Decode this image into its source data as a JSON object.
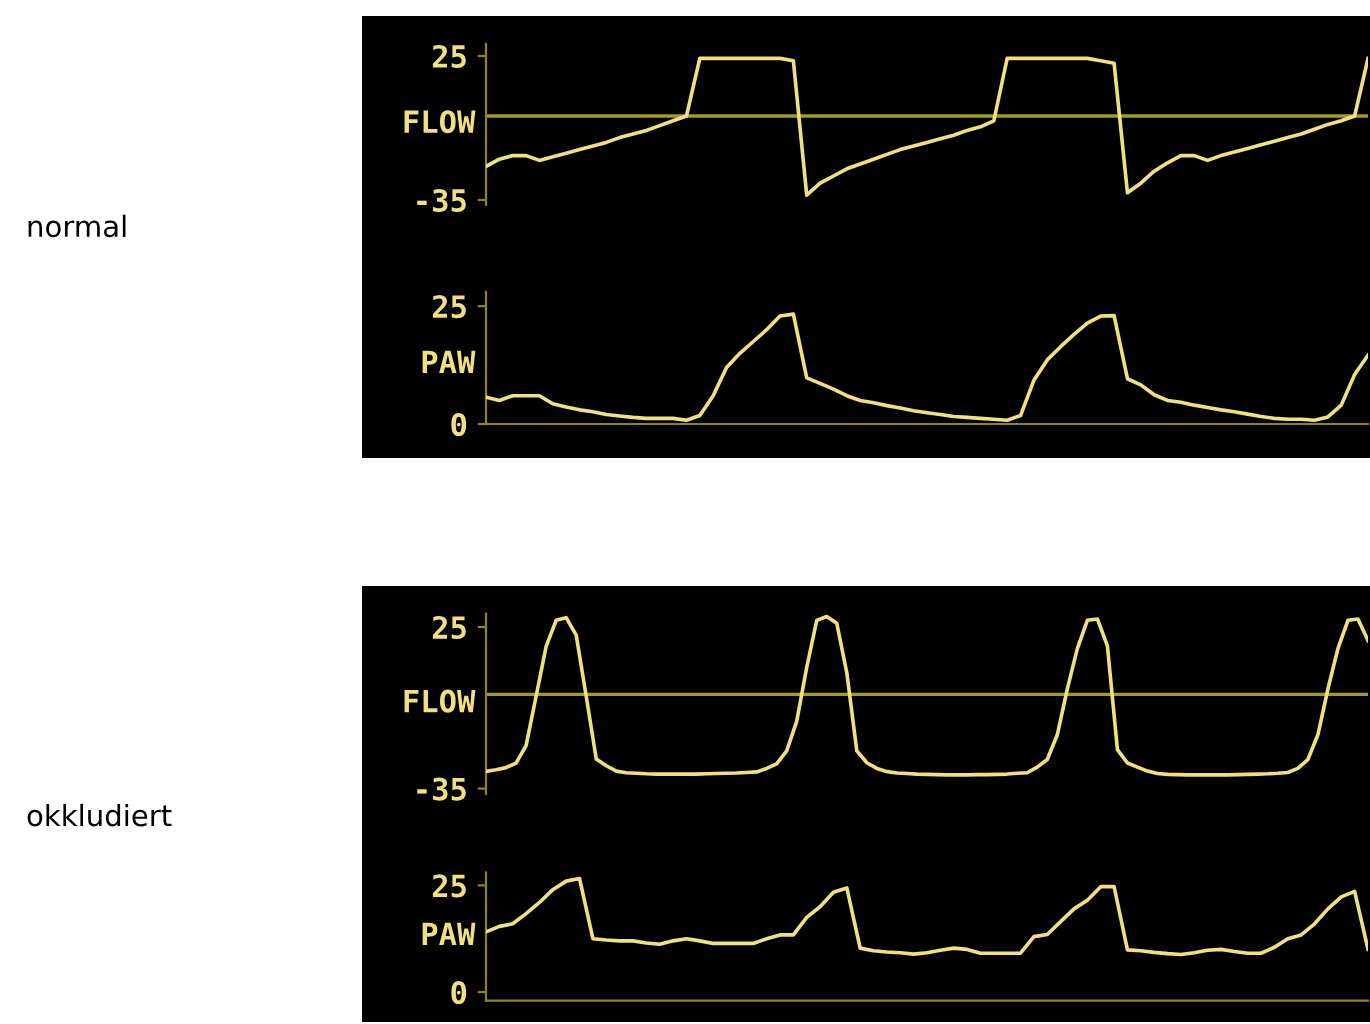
{
  "chart_data": [
    {
      "type": "line",
      "ylabel": "FLOW",
      "annotations": [
        "normal"
      ],
      "ylim": [
        -37,
        30
      ],
      "yticks": [
        -35,
        25
      ],
      "tick_labels": "y",
      "grid": false,
      "legend": false,
      "ref_lines": [
        {
          "axis": "y",
          "value": 0,
          "color": "#a09a30"
        }
      ],
      "categories": [
        null,
        null,
        null,
        null,
        null,
        null,
        null,
        null,
        null,
        null,
        null,
        null,
        null,
        null,
        null,
        null,
        null,
        null,
        null,
        null,
        null,
        null,
        null,
        null,
        null,
        null,
        null,
        null,
        null,
        null,
        null,
        null,
        null,
        null,
        null,
        null,
        null,
        null,
        null,
        null,
        null,
        null,
        null,
        null,
        null,
        null,
        null,
        null,
        null,
        null,
        null,
        null,
        null,
        null,
        null,
        null,
        null,
        null,
        null,
        null,
        null,
        null,
        null,
        null,
        null,
        null,
        null
      ],
      "series": [
        {
          "color": "#f0e080",
          "values": [
            -21,
            -18,
            -16.5,
            -16.5,
            -18.5,
            -17,
            -15.5,
            -14,
            -12.5,
            -11,
            -9,
            -7.5,
            -6,
            -4,
            -2,
            0,
            24,
            24,
            24,
            24,
            24,
            24,
            24,
            23,
            -33,
            -28,
            -25,
            -22,
            -20,
            -18,
            -16,
            -14,
            -12.5,
            -11,
            -9.5,
            -8,
            -6,
            -4.5,
            -2,
            24,
            24,
            24,
            24,
            24,
            24,
            24,
            23,
            22,
            -32,
            -28,
            -23,
            -19.5,
            -16.5,
            -16.5,
            -18.5,
            -16.5,
            -15,
            -13.5,
            -12,
            -10.5,
            -9,
            -7.5,
            -5.5,
            -3.5,
            -2,
            0,
            24
          ]
        }
      ]
    },
    {
      "type": "line",
      "ylabel": "PAW",
      "ylim": [
        0,
        28
      ],
      "yticks": [
        0,
        25
      ],
      "tick_labels": "y",
      "grid": false,
      "legend": false,
      "categories": [
        null,
        null,
        null,
        null,
        null,
        null,
        null,
        null,
        null,
        null,
        null,
        null,
        null,
        null,
        null,
        null,
        null,
        null,
        null,
        null,
        null,
        null,
        null,
        null,
        null,
        null,
        null,
        null,
        null,
        null,
        null,
        null,
        null,
        null,
        null,
        null,
        null,
        null,
        null,
        null,
        null,
        null,
        null,
        null,
        null,
        null,
        null,
        null,
        null,
        null,
        null,
        null,
        null,
        null,
        null,
        null,
        null,
        null,
        null,
        null,
        null,
        null,
        null,
        null,
        null,
        null,
        null
      ],
      "series": [
        {
          "color": "#f0e080",
          "values": [
            5.7,
            5,
            6,
            6,
            6,
            4.3,
            3.6,
            3,
            2.6,
            2,
            1.7,
            1.4,
            1.2,
            1.2,
            1.2,
            0.8,
            1.8,
            6,
            12,
            15,
            17.5,
            20,
            22.9,
            23.3,
            9.8,
            8.6,
            7.4,
            6,
            5,
            4.5,
            3.9,
            3.4,
            2.8,
            2.4,
            2,
            1.6,
            1.4,
            1.2,
            1,
            0.8,
            1.8,
            9.3,
            13.6,
            16.4,
            19,
            21.4,
            22.9,
            23,
            9.6,
            8.3,
            6.2,
            5,
            4.6,
            4,
            3.5,
            3,
            2.6,
            2.1,
            1.6,
            1.2,
            1,
            1,
            0.8,
            1.5,
            4,
            10.5,
            14.6
          ]
        }
      ]
    },
    {
      "type": "line",
      "ylabel": "FLOW",
      "annotations": [
        "okkludiert"
      ],
      "ylim": [
        -37,
        30
      ],
      "yticks": [
        -35,
        25
      ],
      "tick_labels": "y",
      "grid": false,
      "legend": false,
      "ref_lines": [
        {
          "axis": "y",
          "value": 0,
          "color": "#a09a30"
        }
      ],
      "categories": [
        null,
        null,
        null,
        null,
        null,
        null,
        null,
        null,
        null,
        null,
        null,
        null,
        null,
        null,
        null,
        null,
        null,
        null,
        null,
        null,
        null,
        null,
        null,
        null,
        null,
        null,
        null,
        null,
        null,
        null,
        null,
        null,
        null,
        null,
        null,
        null,
        null,
        null,
        null,
        null,
        null,
        null,
        null,
        null,
        null,
        null,
        null,
        null,
        null,
        null,
        null,
        null,
        null,
        null,
        null,
        null,
        null,
        null,
        null,
        null,
        null,
        null,
        null,
        null,
        null,
        null,
        null,
        null,
        null,
        null,
        null,
        null,
        null,
        null,
        null,
        null,
        null,
        null,
        null,
        null,
        null,
        null,
        null,
        null,
        null,
        null,
        null,
        null,
        null
      ],
      "series": [
        {
          "color": "#f0e080",
          "values": [
            -28.6,
            -28,
            -27.2,
            -25.5,
            -19,
            -0.7,
            17.8,
            27.5,
            28.5,
            22,
            -0.7,
            -24,
            -26.5,
            -28.5,
            -29.1,
            -29.3,
            -29.5,
            -29.6,
            -29.6,
            -29.6,
            -29.6,
            -29.6,
            -29.5,
            -29.4,
            -29.3,
            -29.2,
            -29,
            -28.8,
            -27.5,
            -25.8,
            -21,
            -10,
            10,
            27.5,
            28.9,
            26.4,
            8,
            -21,
            -25.4,
            -27.5,
            -28.7,
            -29.2,
            -29.4,
            -29.6,
            -29.7,
            -29.8,
            -29.9,
            -29.9,
            -29.9,
            -29.8,
            -29.8,
            -29.7,
            -29.6,
            -29.3,
            -29.1,
            -27,
            -24.2,
            -15,
            2,
            17,
            27.5,
            28,
            18,
            -20.5,
            -25.5,
            -27,
            -28.5,
            -29.4,
            -29.7,
            -29.8,
            -29.9,
            -29.9,
            -29.9,
            -29.9,
            -29.9,
            -29.8,
            -29.7,
            -29.6,
            -29.5,
            -29.3,
            -29,
            -27.5,
            -24.2,
            -15,
            2,
            17,
            27.5,
            28,
            20
          ]
        }
      ]
    },
    {
      "type": "line",
      "ylabel": "PAW",
      "ylim": [
        -2,
        28
      ],
      "yticks": [
        0,
        25
      ],
      "tick_labels": "y",
      "grid": false,
      "legend": false,
      "categories": [
        null,
        null,
        null,
        null,
        null,
        null,
        null,
        null,
        null,
        null,
        null,
        null,
        null,
        null,
        null,
        null,
        null,
        null,
        null,
        null,
        null,
        null,
        null,
        null,
        null,
        null,
        null,
        null,
        null,
        null,
        null,
        null,
        null,
        null,
        null,
        null,
        null,
        null,
        null,
        null,
        null,
        null,
        null,
        null,
        null,
        null,
        null,
        null,
        null,
        null,
        null,
        null,
        null,
        null,
        null,
        null,
        null,
        null,
        null,
        null,
        null,
        null,
        null,
        null,
        null,
        null,
        null
      ],
      "series": [
        {
          "color": "#f0e080",
          "values": [
            14.1,
            15.4,
            16,
            18.4,
            21,
            24,
            26,
            26.6,
            12.5,
            12.2,
            12,
            12,
            11.5,
            11.2,
            12,
            12.5,
            12,
            11.4,
            11.4,
            11.4,
            11.4,
            12.5,
            13.4,
            13.4,
            17.5,
            20,
            23.4,
            24.4,
            10.3,
            9.7,
            9.4,
            9.2,
            8.9,
            9.2,
            9.8,
            10.3,
            10,
            9.1,
            9.1,
            9.1,
            9.1,
            13,
            13.5,
            16.5,
            19.5,
            21.5,
            24.7,
            24.7,
            9.9,
            9.7,
            9.3,
            9,
            8.8,
            9.2,
            9.8,
            10,
            9.5,
            9.1,
            9.1,
            10.5,
            12.5,
            13.4,
            16,
            19.5,
            22.3,
            23.6,
            10
          ]
        }
      ]
    }
  ]
}
